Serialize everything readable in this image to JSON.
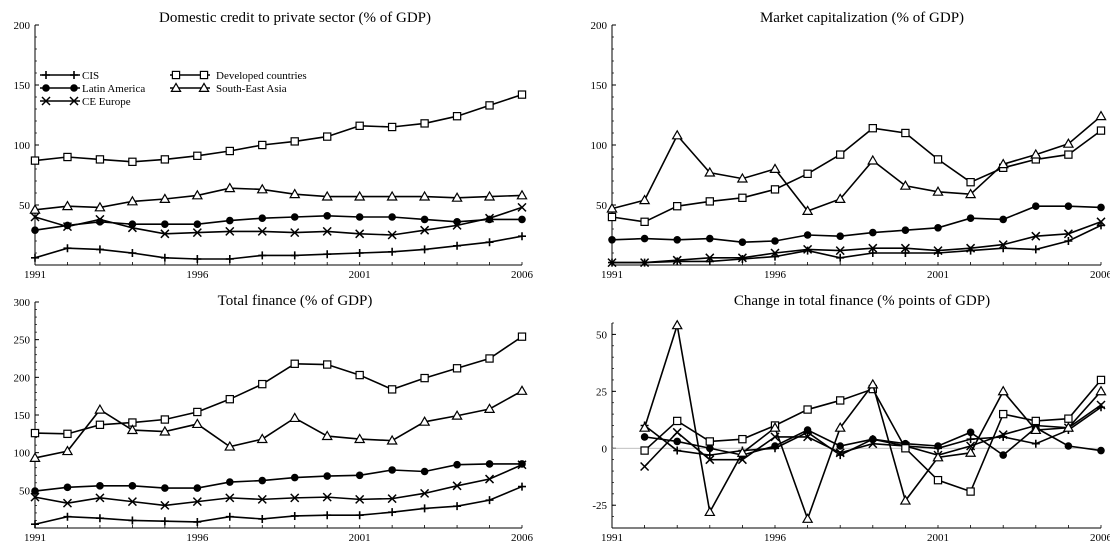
{
  "chart_data": [
    {
      "type": "line",
      "title": "Domestic credit to private sector (% of GDP)",
      "xlabel": "",
      "ylabel": "",
      "xlim": [
        1991,
        2006
      ],
      "ylim": [
        0,
        200
      ],
      "xticks": [
        "1991",
        "1996",
        "2001",
        "2006"
      ],
      "yticks": [
        "50",
        "100",
        "150",
        "200"
      ],
      "legend": true,
      "series": [
        {
          "name": "CIS",
          "marker": "plus",
          "x": [
            1991,
            1992,
            1993,
            1994,
            1995,
            1996,
            1997,
            1998,
            1999,
            2000,
            2001,
            2002,
            2003,
            2004,
            2005,
            2006
          ],
          "values": [
            6,
            14,
            13,
            10,
            6,
            5,
            5,
            8,
            8,
            9,
            10,
            11,
            13,
            16,
            19,
            24
          ]
        },
        {
          "name": "Latin America",
          "marker": "circle",
          "x": [
            1991,
            1992,
            1993,
            1994,
            1995,
            1996,
            1997,
            1998,
            1999,
            2000,
            2001,
            2002,
            2003,
            2004,
            2005,
            2006
          ],
          "values": [
            29,
            33,
            36,
            34,
            34,
            34,
            37,
            39,
            40,
            41,
            40,
            40,
            38,
            36,
            38,
            38
          ]
        },
        {
          "name": "CE Europe",
          "marker": "cross",
          "x": [
            1991,
            1992,
            1993,
            1994,
            1995,
            1996,
            1997,
            1998,
            1999,
            2000,
            2001,
            2002,
            2003,
            2004,
            2005,
            2006
          ],
          "values": [
            40,
            32,
            38,
            31,
            26,
            27,
            28,
            28,
            27,
            28,
            26,
            25,
            29,
            33,
            39,
            48
          ]
        },
        {
          "name": "Developed countries",
          "marker": "square",
          "x": [
            1991,
            1992,
            1993,
            1994,
            1995,
            1996,
            1997,
            1998,
            1999,
            2000,
            2001,
            2002,
            2003,
            2004,
            2005,
            2006
          ],
          "values": [
            87,
            90,
            88,
            86,
            88,
            91,
            95,
            100,
            103,
            107,
            116,
            115,
            118,
            124,
            133,
            142
          ]
        },
        {
          "name": "South-East Asia",
          "marker": "triangle",
          "x": [
            1991,
            1992,
            1993,
            1994,
            1995,
            1996,
            1997,
            1998,
            1999,
            2000,
            2001,
            2002,
            2003,
            2004,
            2005,
            2006
          ],
          "values": [
            46,
            49,
            48,
            53,
            55,
            58,
            64,
            63,
            59,
            57,
            57,
            57,
            57,
            56,
            57,
            58
          ]
        }
      ]
    },
    {
      "type": "line",
      "title": "Market capitalization (% of GDP)",
      "xlabel": "",
      "ylabel": "",
      "xlim": [
        1991,
        2006
      ],
      "ylim": [
        0,
        200
      ],
      "xticks": [
        "1991",
        "1996",
        "2001",
        "2006"
      ],
      "yticks": [
        "50",
        "100",
        "150",
        "200"
      ],
      "legend": false,
      "series": [
        {
          "marker": "plus",
          "x": [
            1991,
            1992,
            1993,
            1994,
            1995,
            1996,
            1997,
            1998,
            1999,
            2000,
            2001,
            2002,
            2003,
            2004,
            2005,
            2006
          ],
          "values": [
            2,
            2,
            3,
            3,
            5,
            7,
            12,
            6,
            10,
            10,
            10,
            12,
            14,
            13,
            20,
            33
          ]
        },
        {
          "marker": "circle",
          "x": [
            1991,
            1992,
            1993,
            1994,
            1995,
            1996,
            1997,
            1998,
            1999,
            2000,
            2001,
            2002,
            2003,
            2004,
            2005,
            2006
          ],
          "values": [
            21,
            22,
            21,
            22,
            19,
            20,
            25,
            24,
            27,
            29,
            31,
            39,
            38,
            49,
            49,
            48
          ]
        },
        {
          "marker": "cross",
          "x": [
            1991,
            1992,
            1993,
            1994,
            1995,
            1996,
            1997,
            1998,
            1999,
            2000,
            2001,
            2002,
            2003,
            2004,
            2005,
            2006
          ],
          "values": [
            2,
            2,
            4,
            6,
            6,
            10,
            13,
            12,
            14,
            14,
            12,
            14,
            17,
            24,
            26,
            36
          ]
        },
        {
          "marker": "square",
          "x": [
            1991,
            1992,
            1993,
            1994,
            1995,
            1996,
            1997,
            1998,
            1999,
            2000,
            2001,
            2002,
            2003,
            2004,
            2005,
            2006
          ],
          "values": [
            40,
            36,
            49,
            53,
            56,
            63,
            76,
            92,
            114,
            110,
            88,
            69,
            81,
            88,
            92,
            112
          ]
        },
        {
          "marker": "triangle",
          "x": [
            1991,
            1992,
            1993,
            1994,
            1995,
            1996,
            1997,
            1998,
            1999,
            2000,
            2001,
            2002,
            2003,
            2004,
            2005,
            2006
          ],
          "values": [
            47,
            54,
            108,
            77,
            72,
            80,
            45,
            55,
            87,
            66,
            61,
            59,
            84,
            92,
            101,
            124
          ]
        }
      ]
    },
    {
      "type": "line",
      "title": "Total finance (% of GDP)",
      "xlabel": "",
      "ylabel": "",
      "xlim": [
        1991,
        2006
      ],
      "ylim": [
        0,
        300
      ],
      "xticks": [
        "1991",
        "1996",
        "2001",
        "2006"
      ],
      "yticks": [
        "50",
        "100",
        "150",
        "200",
        "250",
        "300"
      ],
      "legend": false,
      "series": [
        {
          "marker": "plus",
          "x": [
            1991,
            1992,
            1993,
            1994,
            1995,
            1996,
            1997,
            1998,
            1999,
            2000,
            2001,
            2002,
            2003,
            2004,
            2005,
            2006
          ],
          "values": [
            5,
            15,
            13,
            10,
            9,
            8,
            15,
            12,
            16,
            17,
            17,
            21,
            26,
            29,
            37,
            55
          ]
        },
        {
          "marker": "circle",
          "x": [
            1991,
            1992,
            1993,
            1994,
            1995,
            1996,
            1997,
            1998,
            1999,
            2000,
            2001,
            2002,
            2003,
            2004,
            2005,
            2006
          ],
          "values": [
            49,
            54,
            56,
            56,
            53,
            53,
            61,
            63,
            67,
            69,
            70,
            77,
            75,
            84,
            85,
            85
          ]
        },
        {
          "marker": "cross",
          "x": [
            1991,
            1992,
            1993,
            1994,
            1995,
            1996,
            1997,
            1998,
            1999,
            2000,
            2001,
            2002,
            2003,
            2004,
            2005,
            2006
          ],
          "values": [
            41,
            33,
            40,
            35,
            30,
            35,
            40,
            38,
            40,
            41,
            38,
            39,
            46,
            56,
            65,
            84
          ]
        },
        {
          "marker": "square",
          "x": [
            1991,
            1992,
            1993,
            1994,
            1995,
            1996,
            1997,
            1998,
            1999,
            2000,
            2001,
            2002,
            2003,
            2004,
            2005,
            2006
          ],
          "values": [
            126,
            125,
            137,
            140,
            144,
            154,
            171,
            191,
            218,
            217,
            203,
            184,
            199,
            212,
            225,
            254
          ]
        },
        {
          "marker": "triangle",
          "x": [
            1991,
            1992,
            1993,
            1994,
            1995,
            1996,
            1997,
            1998,
            1999,
            2000,
            2001,
            2002,
            2003,
            2004,
            2005,
            2006
          ],
          "values": [
            93,
            102,
            157,
            130,
            128,
            138,
            108,
            118,
            146,
            122,
            118,
            116,
            141,
            149,
            158,
            182
          ]
        }
      ]
    },
    {
      "type": "line",
      "title": "Change in total finance (% points of GDP)",
      "xlabel": "",
      "ylabel": "",
      "xlim": [
        1991,
        2006
      ],
      "ylim": [
        -35,
        55
      ],
      "xticks": [
        "1991",
        "1996",
        "2001",
        "2006"
      ],
      "yticks": [
        "-25",
        "0",
        "25",
        "50"
      ],
      "zero_line": true,
      "legend": false,
      "series": [
        {
          "marker": "plus",
          "x": [
            1992,
            1993,
            1994,
            1995,
            1996,
            1997,
            1998,
            1999,
            2000,
            2001,
            2002,
            2003,
            2004,
            2005,
            2006
          ],
          "values": [
            10,
            -1,
            -3,
            -1,
            0,
            7,
            -3,
            4,
            1,
            0,
            4,
            5,
            2,
            8,
            18
          ]
        },
        {
          "marker": "circle",
          "x": [
            1992,
            1993,
            1994,
            1995,
            1996,
            1997,
            1998,
            1999,
            2000,
            2001,
            2002,
            2003,
            2004,
            2005,
            2006
          ],
          "values": [
            5,
            3,
            0,
            -3,
            1,
            8,
            1,
            4,
            2,
            1,
            7,
            -3,
            9,
            1,
            -1
          ]
        },
        {
          "marker": "cross",
          "x": [
            1992,
            1993,
            1994,
            1995,
            1996,
            1997,
            1998,
            1999,
            2000,
            2001,
            2002,
            2003,
            2004,
            2005,
            2006
          ],
          "values": [
            -8,
            7,
            -5,
            -5,
            5,
            5,
            -2,
            2,
            1,
            -3,
            1,
            6,
            10,
            9,
            19
          ]
        },
        {
          "marker": "square",
          "x": [
            1992,
            1993,
            1994,
            1995,
            1996,
            1997,
            1998,
            1999,
            2000,
            2001,
            2002,
            2003,
            2004,
            2005,
            2006
          ],
          "values": [
            -1,
            12,
            3,
            4,
            10,
            17,
            21,
            26,
            0,
            -14,
            -19,
            15,
            12,
            13,
            30
          ]
        },
        {
          "marker": "triangle",
          "x": [
            1992,
            1993,
            1994,
            1995,
            1996,
            1997,
            1998,
            1999,
            2000,
            2001,
            2002,
            2003,
            2004,
            2005,
            2006
          ],
          "values": [
            9,
            54,
            -28,
            -2,
            9,
            -31,
            9,
            28,
            -23,
            -4,
            -2,
            25,
            8,
            9,
            25
          ]
        }
      ]
    }
  ]
}
